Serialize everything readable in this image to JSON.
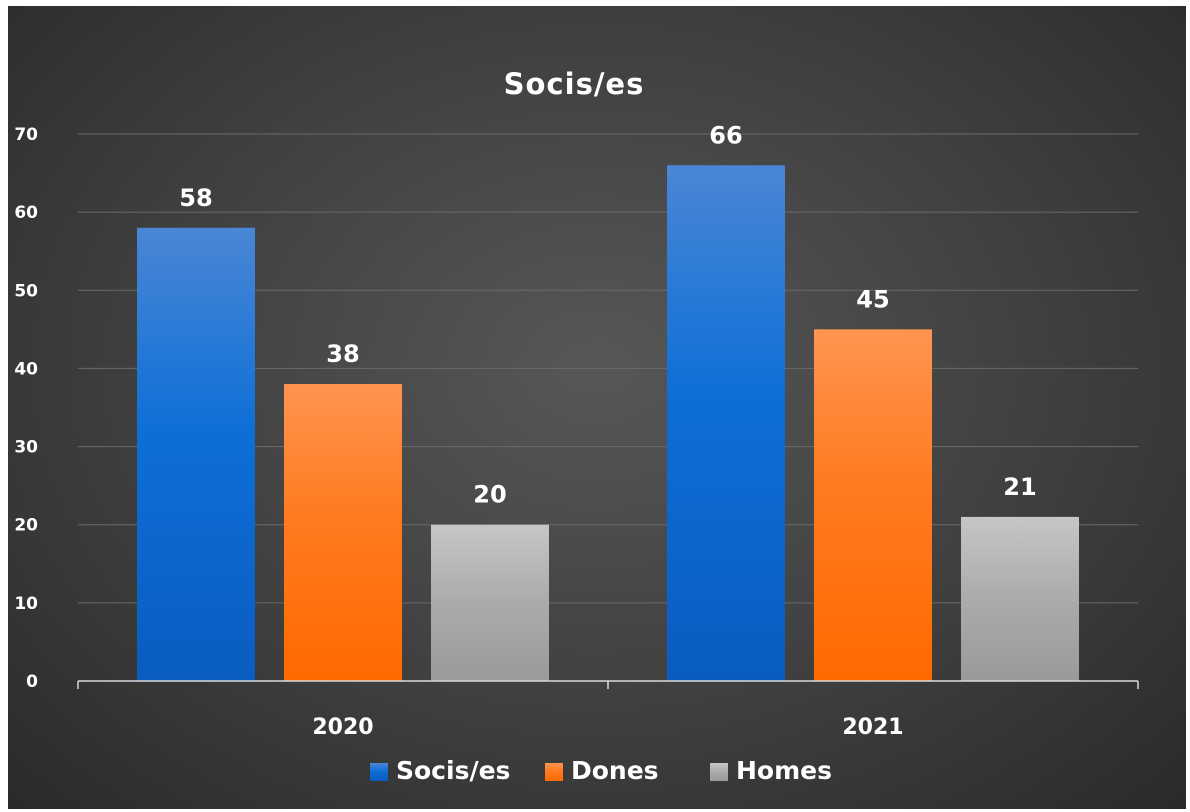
{
  "chart_data": {
    "type": "bar",
    "title": "Socis/es",
    "categories": [
      "2020",
      "2021"
    ],
    "series": [
      {
        "name": "Socis/es",
        "values": [
          58,
          66
        ],
        "color": "#1f6fd1"
      },
      {
        "name": "Dones",
        "values": [
          38,
          45
        ],
        "color": "#ff7a1f"
      },
      {
        "name": "Homes",
        "values": [
          20,
          21
        ],
        "color": "#a9a9a9"
      }
    ],
    "ylim": [
      0,
      70
    ],
    "yticks": [
      0,
      10,
      20,
      30,
      40,
      50,
      60,
      70
    ],
    "grid": true,
    "legend_position": "bottom",
    "data_labels": true,
    "xlabel": "",
    "ylabel": ""
  }
}
